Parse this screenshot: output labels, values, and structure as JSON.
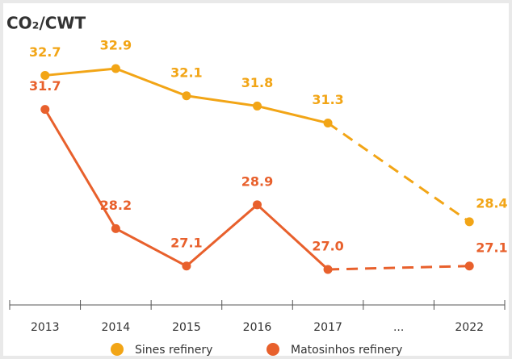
{
  "chart_data": {
    "type": "line",
    "title": "CO₂/CWT",
    "categories": [
      "2013",
      "2014",
      "2015",
      "2016",
      "2017",
      "...",
      "2022"
    ],
    "series": [
      {
        "name": "Sines refinery",
        "color": "#f2a516",
        "values": [
          32.7,
          32.9,
          32.1,
          31.8,
          31.3,
          null,
          28.4
        ]
      },
      {
        "name": "Matosinhos refinery",
        "color": "#e8602c",
        "values": [
          31.7,
          28.2,
          27.1,
          28.9,
          27.0,
          null,
          27.1
        ]
      }
    ],
    "value_labels": {
      "0": [
        "32.7",
        "32.9",
        "32.1",
        "31.8",
        "31.3",
        null,
        "28.4"
      ],
      "1": [
        "31.7",
        "28.2",
        "27.1",
        "28.9",
        "27.0",
        null,
        "27.1"
      ]
    }
  }
}
